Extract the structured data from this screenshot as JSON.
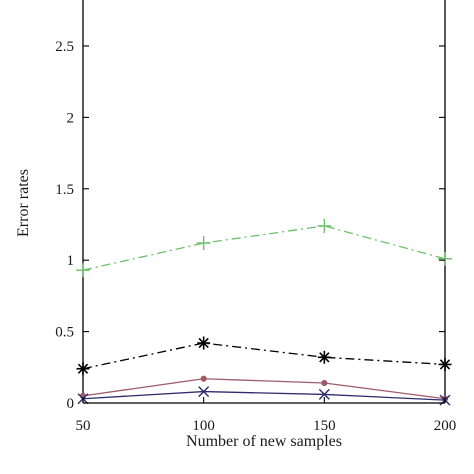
{
  "chart_data": {
    "type": "line",
    "xlabel": "Number of new samples",
    "ylabel": "Error rates",
    "xlim": [
      50,
      200
    ],
    "ylim": [
      0,
      2.85
    ],
    "xticks": [
      50,
      100,
      150,
      200
    ],
    "yticks": [
      0,
      0.5,
      1,
      1.5,
      2,
      2.5
    ],
    "xtick_labels": [
      "50",
      "100",
      "150",
      "200"
    ],
    "ytick_labels": [
      "0",
      "0.5",
      "1",
      "1.5",
      "2",
      "2.5"
    ],
    "grid": false,
    "legend": false,
    "x": [
      50,
      100,
      150,
      200
    ],
    "series": [
      {
        "values": [
          0.93,
          1.12,
          1.24,
          1.01
        ],
        "color": "#6cc06c",
        "line_style": "dashdot",
        "marker": "plus"
      },
      {
        "values": [
          0.24,
          0.42,
          0.32,
          0.27
        ],
        "color": "#000000",
        "line_style": "dashdot",
        "marker": "asterisk"
      },
      {
        "values": [
          0.05,
          0.17,
          0.14,
          0.03
        ],
        "color": "#a05a6a",
        "line_style": "solid",
        "marker": "dot"
      },
      {
        "values": [
          0.03,
          0.08,
          0.06,
          0.02
        ],
        "color": "#2d2d6e",
        "line_style": "solid",
        "marker": "x"
      }
    ]
  }
}
